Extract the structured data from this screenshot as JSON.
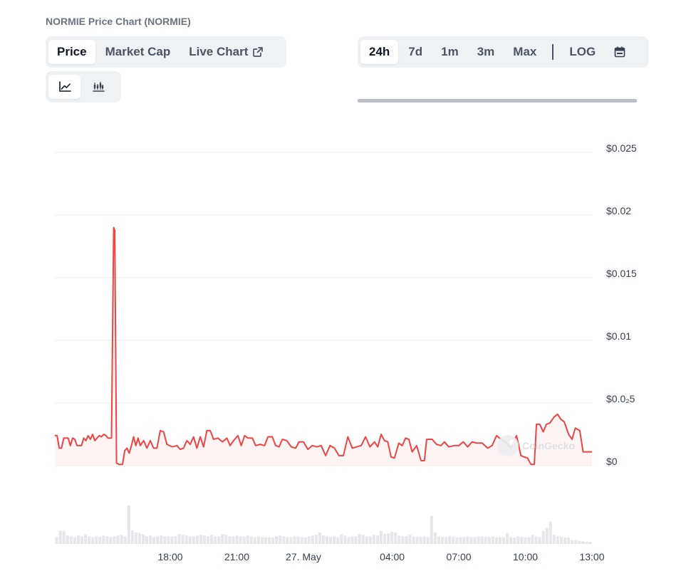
{
  "page": {
    "title": "NORMIE Price Chart (NORMIE)"
  },
  "tabs": [
    {
      "label": "Price",
      "active": true
    },
    {
      "label": "Market Cap",
      "active": false
    },
    {
      "label": "Live Chart",
      "active": false,
      "icon": "external-link-icon"
    }
  ],
  "view_toggle": [
    {
      "icon": "line-chart-icon",
      "active": true
    },
    {
      "icon": "candlestick-chart-icon",
      "active": false
    }
  ],
  "ranges": [
    {
      "label": "24h",
      "active": true
    },
    {
      "label": "7d",
      "active": false
    },
    {
      "label": "1m",
      "active": false
    },
    {
      "label": "3m",
      "active": false
    },
    {
      "label": "Max",
      "active": false
    },
    {
      "label": "LOG",
      "active": false
    }
  ],
  "calendar_icon": "calendar-icon",
  "watermark": "CoinGecko",
  "colors": {
    "line": "#ef4444",
    "fill": "#fdecec",
    "volume": "#e5e7eb",
    "grid": "#eceef1"
  },
  "chart_data": {
    "type": "line",
    "title": "",
    "xlabel": "",
    "ylabel": "",
    "ylim": [
      0,
      0.025
    ],
    "y_ticks": [
      {
        "value": 0,
        "label": "$0"
      },
      {
        "value": 0.005,
        "label": "$0.0₂5"
      },
      {
        "value": 0.01,
        "label": "$0.01"
      },
      {
        "value": 0.015,
        "label": "$0.015"
      },
      {
        "value": 0.02,
        "label": "$0.02"
      },
      {
        "value": 0.025,
        "label": "$0.025"
      }
    ],
    "x_ticks": [
      {
        "hour": 2.5,
        "label": "18:00"
      },
      {
        "hour": 5.5,
        "label": "21:00"
      },
      {
        "hour": 8.5,
        "label": "27. May"
      },
      {
        "hour": 12.5,
        "label": "04:00"
      },
      {
        "hour": 15.5,
        "label": "07:00"
      },
      {
        "hour": 18.5,
        "label": "10:00"
      },
      {
        "hour": 21.5,
        "label": "13:00"
      }
    ],
    "xlim": [
      -2.7,
      21.5
    ],
    "grid": true,
    "series": [
      {
        "points": [
          [
            -2.7,
            0.0024
          ],
          [
            -2.6,
            0.0024
          ],
          [
            -2.5,
            0.0014
          ],
          [
            -2.4,
            0.0014
          ],
          [
            -2.3,
            0.0022
          ],
          [
            -2.1,
            0.0022
          ],
          [
            -2.0,
            0.0016
          ],
          [
            -1.9,
            0.0022
          ],
          [
            -1.8,
            0.0021
          ],
          [
            -1.7,
            0.0016
          ],
          [
            -1.5,
            0.0016
          ],
          [
            -1.4,
            0.0022
          ],
          [
            -1.3,
            0.002
          ],
          [
            -1.2,
            0.0024
          ],
          [
            -1.1,
            0.0021
          ],
          [
            -1.0,
            0.0025
          ],
          [
            -0.9,
            0.002
          ],
          [
            -0.8,
            0.0022
          ],
          [
            -0.7,
            0.0024
          ],
          [
            -0.6,
            0.0023
          ],
          [
            -0.5,
            0.0025
          ],
          [
            -0.4,
            0.0024
          ],
          [
            -0.3,
            0.0022
          ],
          [
            -0.15,
            0.0022
          ],
          [
            -0.05,
            0.019
          ],
          [
            0.0,
            0.0188
          ],
          [
            0.08,
            0.0002
          ],
          [
            0.2,
            0.0001
          ],
          [
            0.35,
            0.0001
          ],
          [
            0.45,
            0.0012
          ],
          [
            0.55,
            0.0014
          ],
          [
            0.65,
            0.001
          ],
          [
            0.75,
            0.0016
          ],
          [
            0.85,
            0.0023
          ],
          [
            0.95,
            0.0016
          ],
          [
            1.05,
            0.0022
          ],
          [
            1.15,
            0.0016
          ],
          [
            1.3,
            0.002
          ],
          [
            1.45,
            0.0014
          ],
          [
            1.6,
            0.002
          ],
          [
            1.75,
            0.0014
          ],
          [
            1.9,
            0.0014
          ],
          [
            2.05,
            0.0028
          ],
          [
            2.2,
            0.0027
          ],
          [
            2.35,
            0.0017
          ],
          [
            2.6,
            0.0015
          ],
          [
            2.8,
            0.0016
          ],
          [
            2.95,
            0.0013
          ],
          [
            3.1,
            0.0014
          ],
          [
            3.25,
            0.002
          ],
          [
            3.4,
            0.0017
          ],
          [
            3.55,
            0.0023
          ],
          [
            3.7,
            0.0014
          ],
          [
            3.85,
            0.0023
          ],
          [
            4.0,
            0.0015
          ],
          [
            4.15,
            0.0028
          ],
          [
            4.3,
            0.0028
          ],
          [
            4.45,
            0.0021
          ],
          [
            4.65,
            0.0022
          ],
          [
            4.85,
            0.0019
          ],
          [
            5.05,
            0.0022
          ],
          [
            5.2,
            0.0016
          ],
          [
            5.35,
            0.002
          ],
          [
            5.55,
            0.0024
          ],
          [
            5.7,
            0.0016
          ],
          [
            5.85,
            0.0024
          ],
          [
            6.0,
            0.0022
          ],
          [
            6.2,
            0.0022
          ],
          [
            6.35,
            0.0016
          ],
          [
            6.55,
            0.0017
          ],
          [
            6.75,
            0.0016
          ],
          [
            6.9,
            0.0023
          ],
          [
            7.1,
            0.0023
          ],
          [
            7.25,
            0.0016
          ],
          [
            7.4,
            0.0015
          ],
          [
            7.55,
            0.0021
          ],
          [
            7.75,
            0.002
          ],
          [
            7.95,
            0.0015
          ],
          [
            8.15,
            0.0014
          ],
          [
            8.3,
            0.0019
          ],
          [
            8.5,
            0.0019
          ],
          [
            8.7,
            0.0013
          ],
          [
            8.9,
            0.0016
          ],
          [
            9.1,
            0.0015
          ],
          [
            9.3,
            0.0016
          ],
          [
            9.5,
            0.0008
          ],
          [
            9.7,
            0.0016
          ],
          [
            9.9,
            0.0014
          ],
          [
            10.1,
            0.0008
          ],
          [
            10.3,
            0.0008
          ],
          [
            10.5,
            0.0023
          ],
          [
            10.7,
            0.0014
          ],
          [
            10.9,
            0.0015
          ],
          [
            11.1,
            0.0016
          ],
          [
            11.3,
            0.0023
          ],
          [
            11.5,
            0.0015
          ],
          [
            11.7,
            0.0019
          ],
          [
            11.85,
            0.0015
          ],
          [
            12.0,
            0.0025
          ],
          [
            12.15,
            0.002
          ],
          [
            12.3,
            0.0019
          ],
          [
            12.45,
            0.0007
          ],
          [
            12.6,
            0.0006
          ],
          [
            12.8,
            0.0018
          ],
          [
            12.95,
            0.0016
          ],
          [
            13.1,
            0.0022
          ],
          [
            13.25,
            0.0021
          ],
          [
            13.4,
            0.0011
          ],
          [
            13.6,
            0.0016
          ],
          [
            13.8,
            0.0004
          ],
          [
            13.95,
            0.0004
          ],
          [
            14.05,
            0.0021
          ],
          [
            14.3,
            0.0021
          ],
          [
            14.5,
            0.0017
          ],
          [
            14.7,
            0.0016
          ],
          [
            14.85,
            0.0019
          ],
          [
            15.05,
            0.0015
          ],
          [
            15.3,
            0.0016
          ],
          [
            15.5,
            0.0016
          ],
          [
            15.7,
            0.0019
          ],
          [
            15.9,
            0.0015
          ],
          [
            16.1,
            0.0019
          ],
          [
            16.3,
            0.0018
          ],
          [
            16.55,
            0.0018
          ],
          [
            16.8,
            0.0014
          ],
          [
            17.0,
            0.0016
          ],
          [
            17.2,
            0.0024
          ],
          [
            17.4,
            0.0021
          ],
          [
            17.6,
            0.0019
          ],
          [
            17.85,
            0.0014
          ],
          [
            18.1,
            0.0024
          ],
          [
            18.3,
            0.0008
          ],
          [
            18.6,
            0.0006
          ],
          [
            18.75,
            0.0001
          ],
          [
            18.9,
            0.0001
          ],
          [
            19.0,
            0.0033
          ],
          [
            19.15,
            0.0033
          ],
          [
            19.3,
            0.0027
          ],
          [
            19.45,
            0.0033
          ],
          [
            19.6,
            0.0034
          ],
          [
            19.8,
            0.0039
          ],
          [
            19.95,
            0.0041
          ],
          [
            20.1,
            0.0037
          ],
          [
            20.25,
            0.0035
          ],
          [
            20.45,
            0.0025
          ],
          [
            20.6,
            0.0021
          ],
          [
            20.75,
            0.003
          ],
          [
            20.95,
            0.0028
          ],
          [
            21.1,
            0.0011
          ],
          [
            21.5,
            0.0011
          ]
        ]
      }
    ],
    "volume_relative": [
      0.18,
      0.35,
      0.33,
      0.22,
      0.2,
      0.18,
      0.22,
      0.2,
      0.24,
      0.2,
      0.18,
      0.2,
      0.19,
      0.22,
      0.2,
      0.18,
      0.2,
      0.22,
      0.24,
      0.2,
      1.0,
      0.35,
      0.3,
      0.28,
      0.25,
      0.2,
      0.22,
      0.18,
      0.2,
      0.22,
      0.2,
      0.2,
      0.19,
      0.2,
      0.26,
      0.24,
      0.22,
      0.2,
      0.2,
      0.22,
      0.24,
      0.22,
      0.2,
      0.24,
      0.2,
      0.2,
      0.26,
      0.24,
      0.2,
      0.2,
      0.22,
      0.2,
      0.19,
      0.22,
      0.2,
      0.18,
      0.2,
      0.18,
      0.17,
      0.18,
      0.17,
      0.2,
      0.22,
      0.2,
      0.18,
      0.18,
      0.2,
      0.2,
      0.18,
      0.17,
      0.2,
      0.22,
      0.24,
      0.3,
      0.22,
      0.2,
      0.18,
      0.2,
      0.18,
      0.25,
      0.22,
      0.18,
      0.2,
      0.2,
      0.26,
      0.24,
      0.2,
      0.2,
      0.24,
      0.22,
      0.34,
      0.26,
      0.28,
      0.32,
      0.3,
      0.22,
      0.2,
      0.2,
      0.24,
      0.2,
      0.18,
      0.18,
      0.2,
      0.18,
      0.73,
      0.3,
      0.2,
      0.18,
      0.18,
      0.2,
      0.18,
      0.17,
      0.18,
      0.18,
      0.2,
      0.18,
      0.18,
      0.2,
      0.2,
      0.18,
      0.18,
      0.2,
      0.17,
      0.18,
      0.18,
      0.28,
      0.18,
      0.17,
      0.2,
      0.18,
      0.17,
      0.18,
      0.24,
      0.2,
      0.18,
      0.34,
      0.42,
      0.58,
      0.24,
      0.2,
      0.18,
      0.17,
      0.16,
      0.1,
      0.1,
      0.08,
      0.07,
      0.06,
      0.05
    ]
  }
}
